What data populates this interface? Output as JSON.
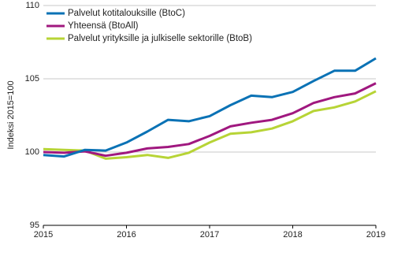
{
  "chart_data": {
    "type": "line",
    "y_label": "Indeksi 2015=100",
    "categories": [
      "2015",
      null,
      null,
      null,
      "2016",
      null,
      null,
      null,
      "2017",
      null,
      null,
      null,
      "2018",
      null,
      null,
      null,
      "2019"
    ],
    "series": [
      {
        "name": "Palvelut kotitalouksille (BtoC)",
        "color": "#0a72b5",
        "values": [
          99.8,
          99.7,
          100.15,
          100.1,
          100.65,
          101.4,
          102.2,
          102.1,
          102.45,
          103.2,
          103.85,
          103.75,
          104.1,
          104.85,
          105.55,
          105.55,
          106.4
        ]
      },
      {
        "name": "Yhteensä (BtoAll)",
        "color": "#a0187f",
        "values": [
          100.0,
          99.95,
          100.05,
          99.75,
          99.95,
          100.25,
          100.35,
          100.55,
          101.1,
          101.75,
          102.0,
          102.2,
          102.65,
          103.35,
          103.75,
          104.0,
          104.7
        ]
      },
      {
        "name": "Palvelut yrityksille ja julkiselle sektorille (BtoB)",
        "color": "#b7d436",
        "values": [
          100.2,
          100.15,
          100.1,
          99.55,
          99.65,
          99.8,
          99.6,
          99.95,
          100.65,
          101.25,
          101.35,
          101.6,
          102.1,
          102.8,
          103.05,
          103.45,
          104.15
        ]
      }
    ],
    "ylim": [
      95,
      110
    ],
    "yticks": [
      95,
      100,
      105,
      110
    ],
    "grid": true
  }
}
